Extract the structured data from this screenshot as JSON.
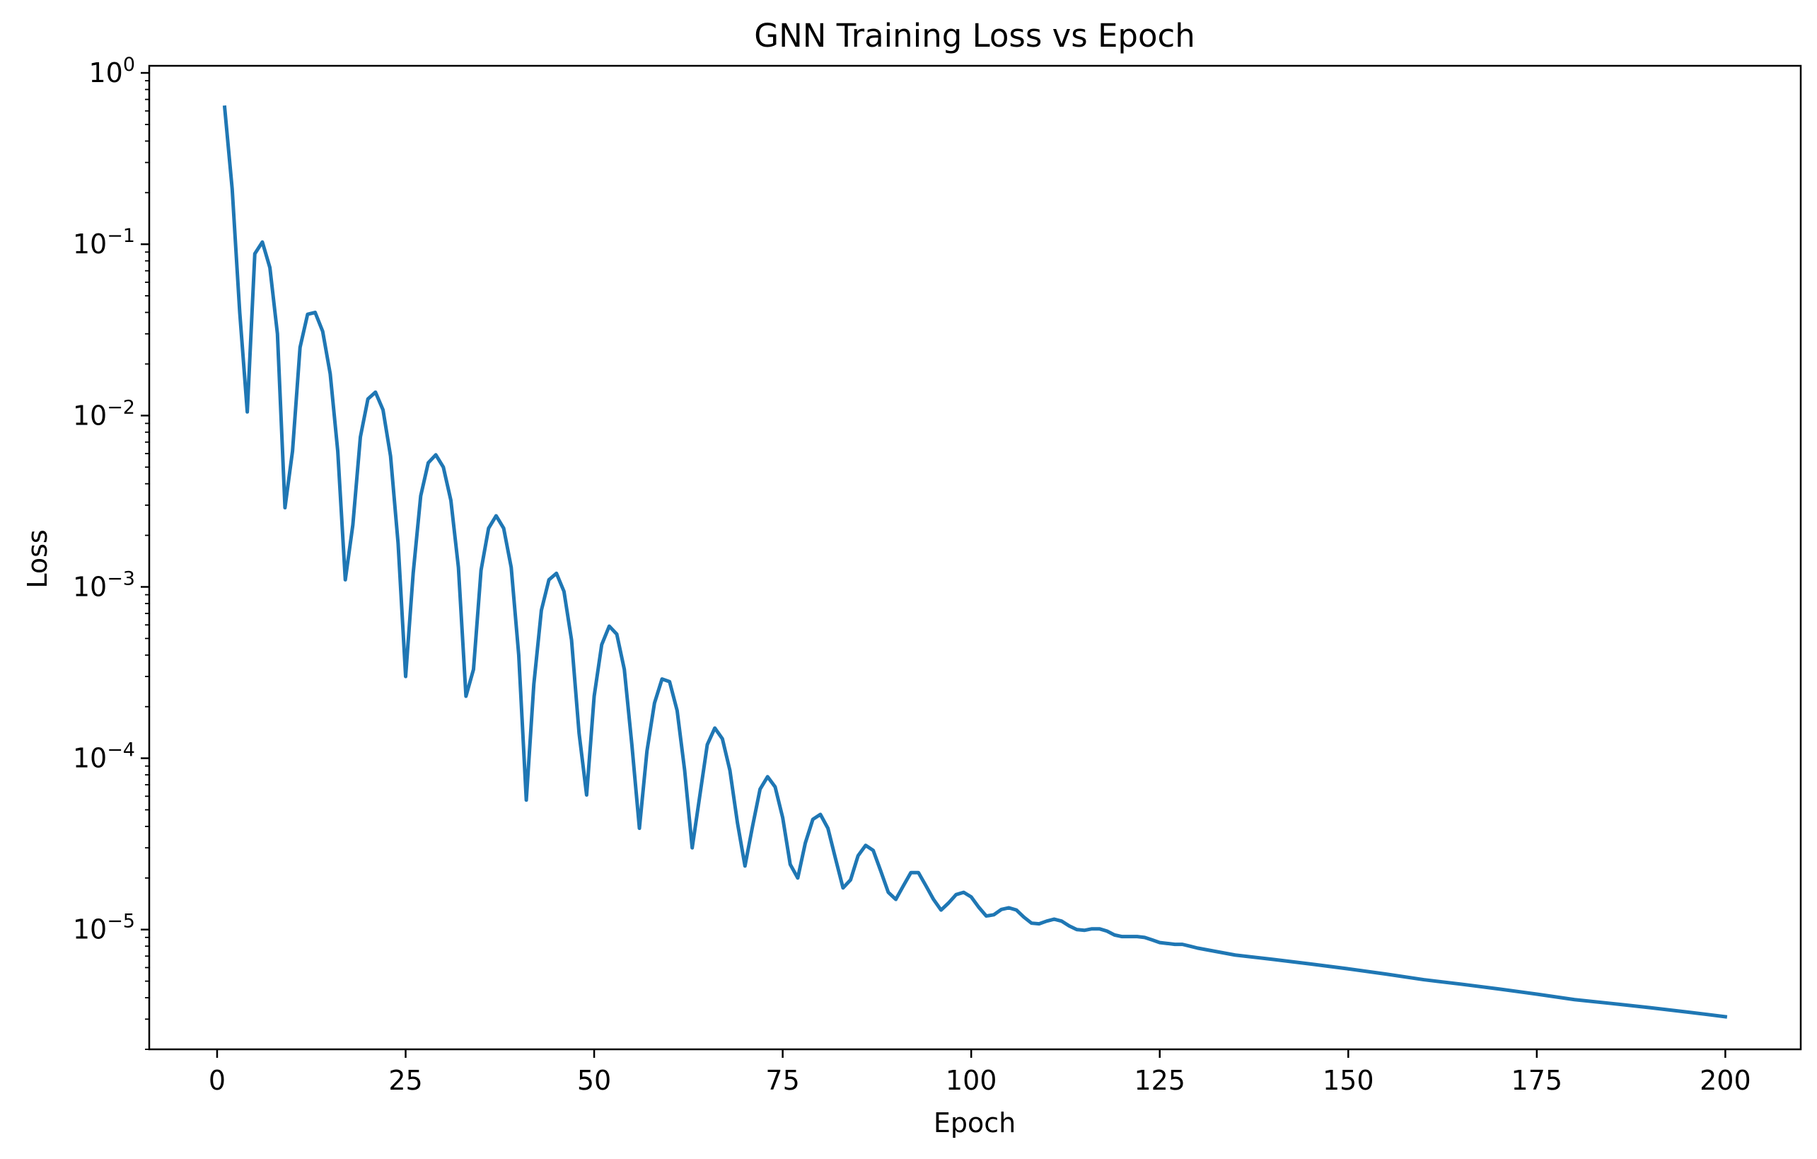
{
  "chart_data": {
    "type": "line",
    "title": "GNN Training Loss vs Epoch",
    "xlabel": "Epoch",
    "ylabel": "Loss",
    "xlim": [
      -9,
      210
    ],
    "ylim": [
      2e-06,
      1.1
    ],
    "yscale": "log",
    "grid": false,
    "color": "#1f77b4",
    "x_ticks": [
      0,
      25,
      50,
      75,
      100,
      125,
      150,
      175,
      200
    ],
    "y_ticks": [
      {
        "value": 1,
        "base": "10",
        "exp": "0"
      },
      {
        "value": 0.1,
        "base": "10",
        "exp": "−1"
      },
      {
        "value": 0.01,
        "base": "10",
        "exp": "−2"
      },
      {
        "value": 0.001,
        "base": "10",
        "exp": "−3"
      },
      {
        "value": 0.0001,
        "base": "10",
        "exp": "−4"
      },
      {
        "value": 1e-05,
        "base": "10",
        "exp": "−5"
      }
    ],
    "series": [
      {
        "x": [
          1,
          2,
          3,
          4,
          5,
          6,
          7,
          8,
          9,
          10,
          11,
          12,
          13,
          14,
          15,
          16,
          17,
          18,
          19,
          20,
          21,
          22,
          23,
          24,
          25,
          26,
          27,
          28,
          29,
          30,
          31,
          32,
          33,
          34,
          35,
          36,
          37,
          38,
          39,
          40,
          41,
          42,
          43,
          44,
          45,
          46,
          47,
          48,
          49,
          50,
          51,
          52,
          53,
          54,
          55,
          56,
          57,
          58,
          59,
          60,
          61,
          62,
          63,
          64,
          65,
          66,
          67,
          68,
          69,
          70,
          71,
          72,
          73,
          74,
          75,
          76,
          77,
          78,
          79,
          80,
          81,
          82,
          83,
          84,
          85,
          86,
          87,
          88,
          89,
          90,
          91,
          92,
          93,
          94,
          95,
          96,
          97,
          98,
          99,
          100,
          101,
          102,
          103,
          104,
          105,
          106,
          107,
          108,
          109,
          110,
          111,
          112,
          113,
          114,
          115,
          116,
          117,
          118,
          119,
          120,
          121,
          122,
          123,
          124,
          125,
          126,
          127,
          128,
          129,
          130,
          135,
          140,
          145,
          150,
          155,
          160,
          165,
          170,
          175,
          180,
          185,
          190,
          195,
          200
        ],
        "y": [
          0.63,
          0.21,
          0.04,
          0.0105,
          0.088,
          0.103,
          0.073,
          0.03,
          0.0029,
          0.0062,
          0.025,
          0.039,
          0.04,
          0.031,
          0.0175,
          0.0062,
          0.0011,
          0.0023,
          0.0075,
          0.0125,
          0.0137,
          0.0108,
          0.0058,
          0.0018,
          0.0003,
          0.0012,
          0.0034,
          0.0053,
          0.0059,
          0.005,
          0.0032,
          0.0013,
          0.00023,
          0.00033,
          0.00125,
          0.0022,
          0.0026,
          0.0022,
          0.0013,
          0.0004,
          5.7e-05,
          0.00027,
          0.00073,
          0.0011,
          0.0012,
          0.00094,
          0.00049,
          0.00014,
          6.1e-05,
          0.00023,
          0.00046,
          0.00059,
          0.00053,
          0.00033,
          0.00012,
          3.9e-05,
          0.00011,
          0.00021,
          0.00029,
          0.00028,
          0.00019,
          8.5e-05,
          3e-05,
          6e-05,
          0.00012,
          0.00015,
          0.00013,
          8.5e-05,
          4.2e-05,
          2.35e-05,
          4e-05,
          6.6e-05,
          7.8e-05,
          6.8e-05,
          4.5e-05,
          2.4e-05,
          2e-05,
          3.2e-05,
          4.4e-05,
          4.7e-05,
          3.9e-05,
          2.6e-05,
          1.75e-05,
          1.95e-05,
          2.7e-05,
          3.1e-05,
          2.9e-05,
          2.2e-05,
          1.65e-05,
          1.5e-05,
          1.8e-05,
          2.15e-05,
          2.15e-05,
          1.8e-05,
          1.5e-05,
          1.3e-05,
          1.43e-05,
          1.6e-05,
          1.65e-05,
          1.55e-05,
          1.35e-05,
          1.2e-05,
          1.22e-05,
          1.31e-05,
          1.34e-05,
          1.3e-05,
          1.18e-05,
          1.09e-05,
          1.08e-05,
          1.12e-05,
          1.15e-05,
          1.12e-05,
          1.05e-05,
          1e-05,
          9.9e-06,
          1.01e-05,
          1.01e-05,
          9.8e-06,
          9.3e-06,
          9.1e-06,
          9.1e-06,
          9.1e-06,
          9e-06,
          8.7e-06,
          8.4e-06,
          8.3e-06,
          8.2e-06,
          8.2e-06,
          8e-06,
          7.8e-06,
          7.1e-06,
          6.7e-06,
          6.3e-06,
          5.9e-06,
          5.5e-06,
          5.1e-06,
          4.8e-06,
          4.5e-06,
          4.2e-06,
          3.9e-06,
          3.7e-06,
          3.5e-06,
          3.3e-06,
          3.1e-06
        ]
      }
    ]
  }
}
